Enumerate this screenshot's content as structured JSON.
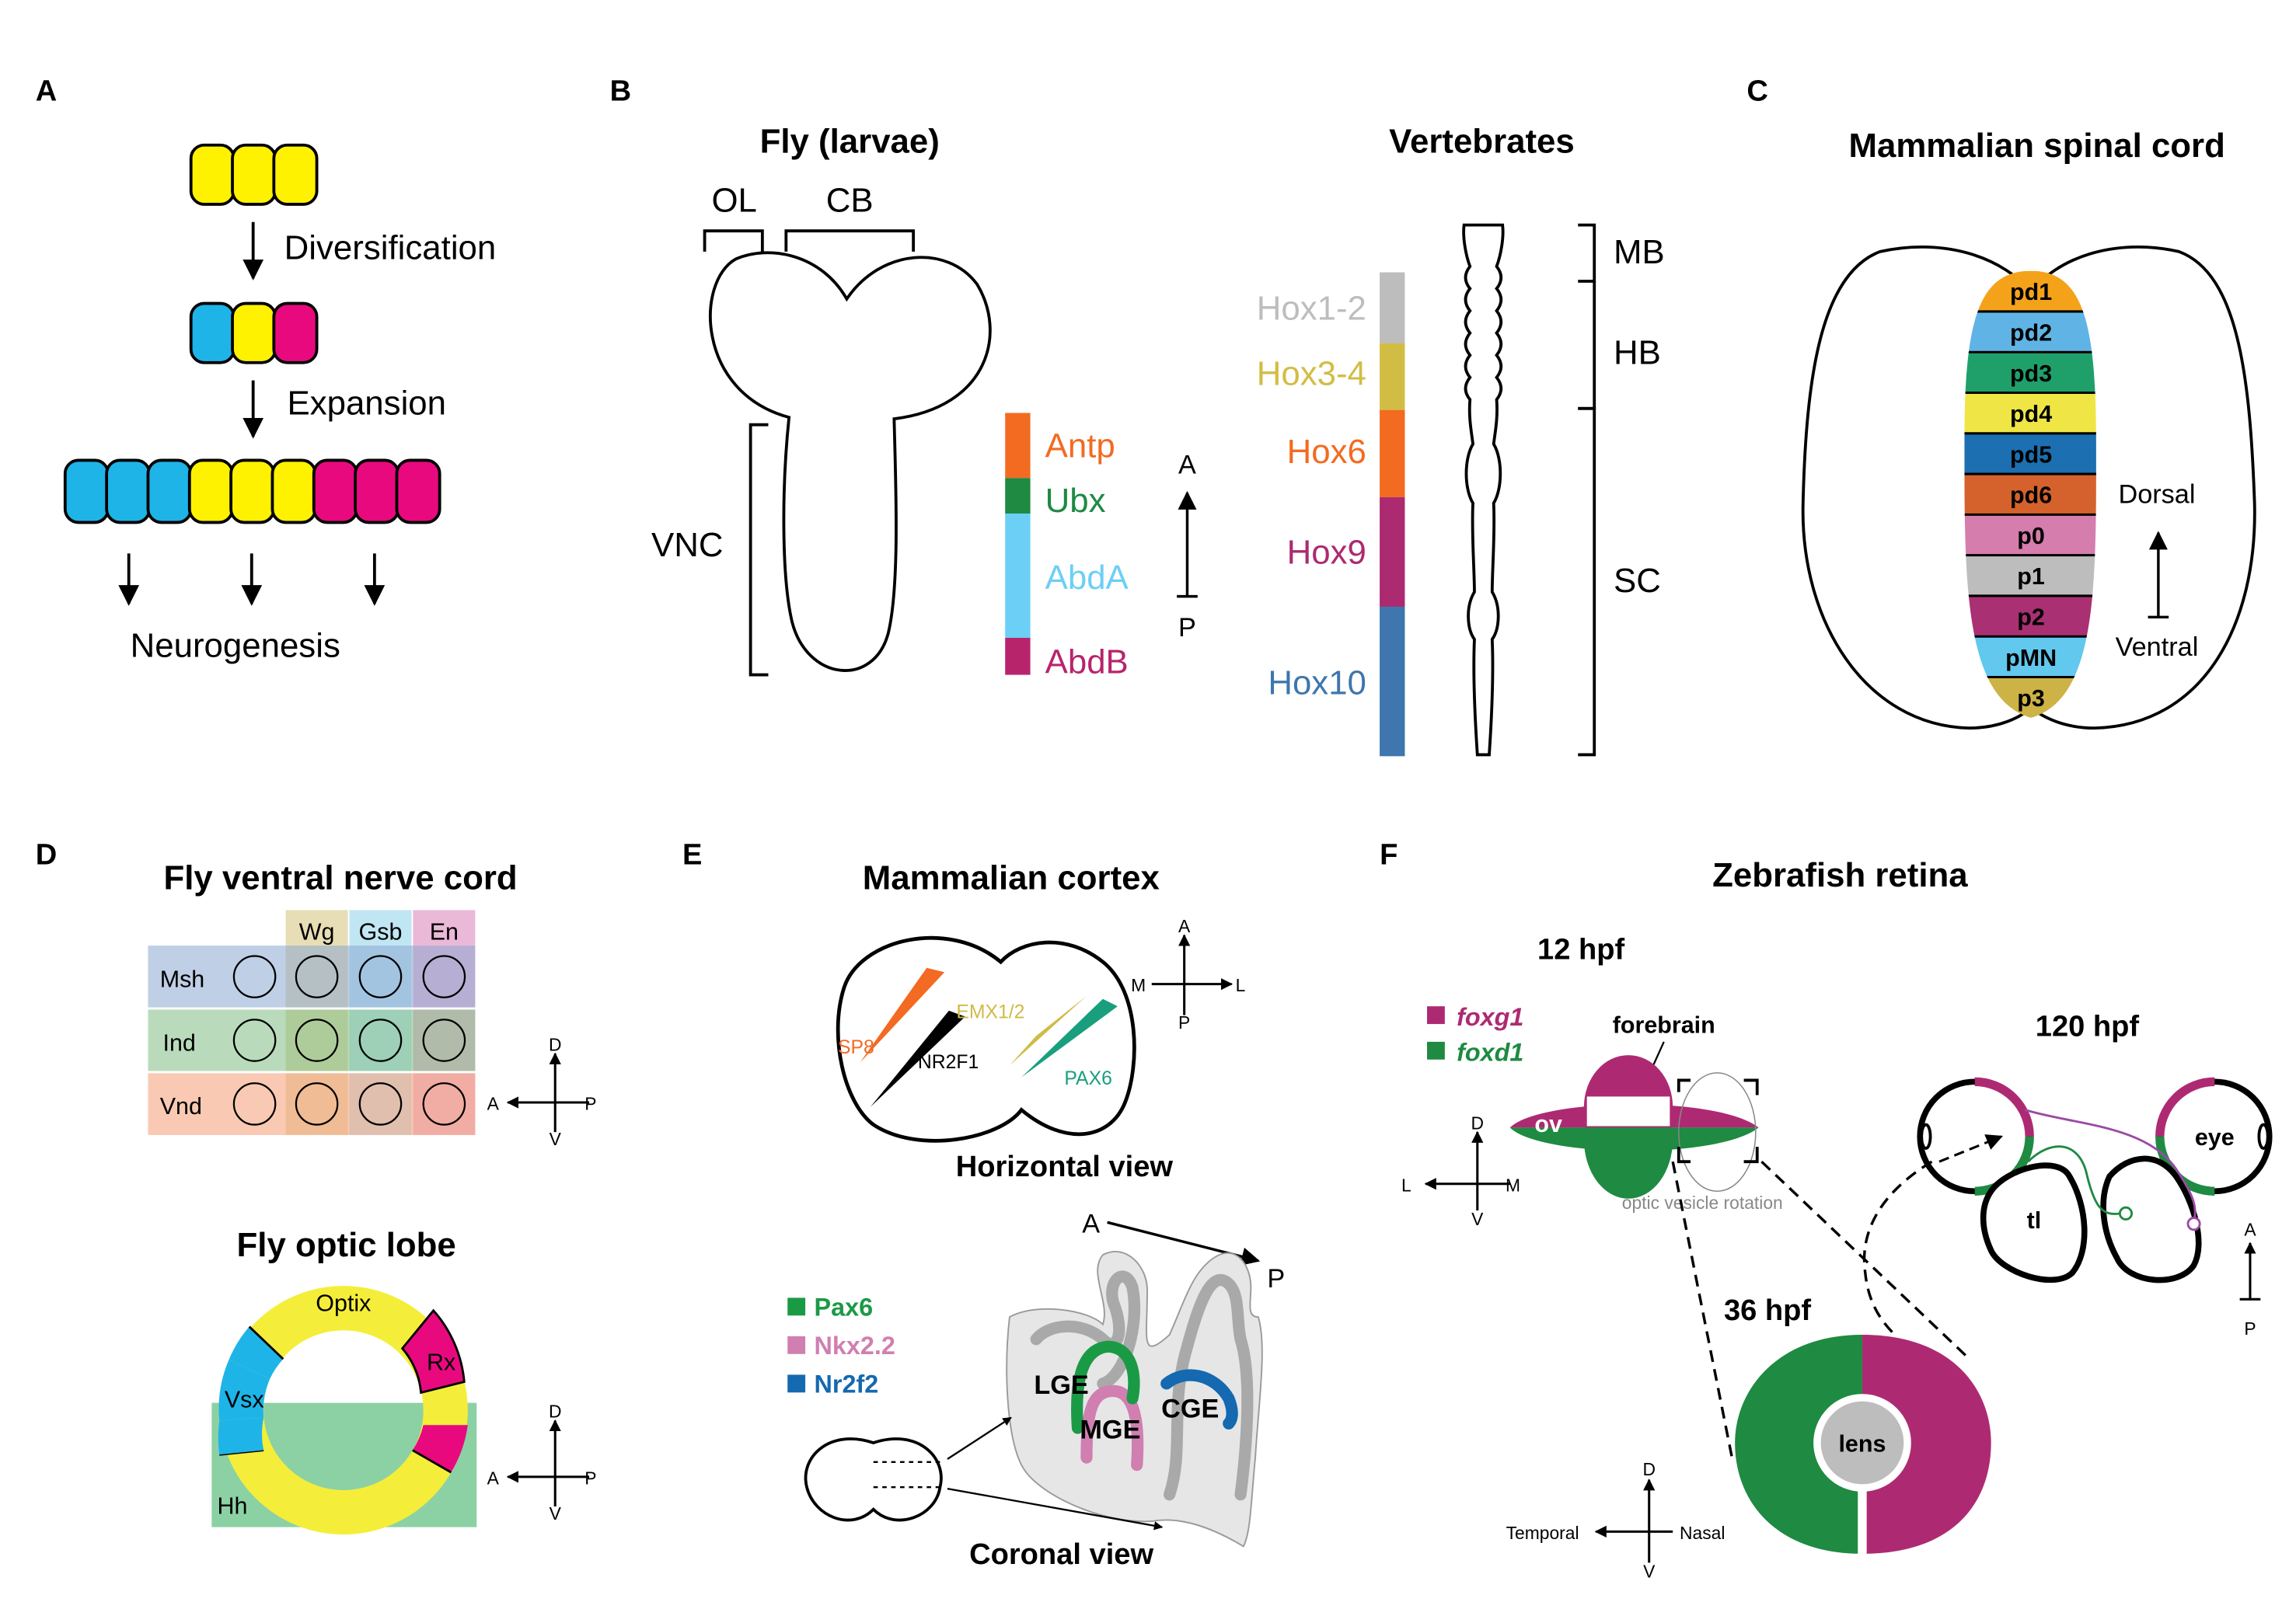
{
  "colors": {
    "yellow": "#FFF200",
    "cyan": "#1EB4E8",
    "magenta": "#E8097F",
    "antp": "#F26B21",
    "ubx": "#1E8A42",
    "abda": "#6CCFF6",
    "abdb": "#B8246C",
    "hox12": "#BDBDBD",
    "hox34": "#D2BD44",
    "hox6": "#F26B21",
    "hox9": "#AB2A70",
    "hox10": "#3E76AD",
    "foxg1": "#AD2A72",
    "foxd1": "#1E8A42",
    "pax6": "#1B9A46",
    "nkx22": "#D07FB0",
    "nr2f2": "#1469B0",
    "emx": "#CFBB46",
    "sp8": "#F36A22",
    "pax6_cortex": "#199F7E"
  },
  "panelA": {
    "letter": "A",
    "step1": "Diversification",
    "step2": "Expansion",
    "result": "Neurogenesis"
  },
  "panelB": {
    "letter": "B",
    "fly_title": "Fly (larvae)",
    "ol": "OL",
    "cb": "CB",
    "vnc": "VNC",
    "fly_genes": [
      "Antp",
      "Ubx",
      "AbdA",
      "AbdB"
    ],
    "axis_a": "A",
    "axis_p": "P",
    "vert_title": "Vertebrates",
    "vert_genes": [
      "Hox1-2",
      "Hox3-4",
      "Hox6",
      "Hox9",
      "Hox10"
    ],
    "regions": [
      "MB",
      "HB",
      "SC"
    ]
  },
  "panelC": {
    "letter": "C",
    "title": "Mammalian spinal cord",
    "domains": [
      {
        "label": "pd1",
        "color": "#F5A21B"
      },
      {
        "label": "pd2",
        "color": "#5FB4E5"
      },
      {
        "label": "pd3",
        "color": "#1FA06B"
      },
      {
        "label": "pd4",
        "color": "#EFE646"
      },
      {
        "label": "pd5",
        "color": "#1C6FB0"
      },
      {
        "label": "pd6",
        "color": "#D5622C"
      },
      {
        "label": "p0",
        "color": "#D57DAC"
      },
      {
        "label": "p1",
        "color": "#BDBDBD"
      },
      {
        "label": "p2",
        "color": "#A93072"
      },
      {
        "label": "pMN",
        "color": "#62C8EE"
      },
      {
        "label": "p3",
        "color": "#CDB246"
      }
    ],
    "dorsal": "Dorsal",
    "ventral": "Ventral"
  },
  "panelD": {
    "letter": "D",
    "title1": "Fly ventral nerve cord",
    "cols": [
      "Wg",
      "Gsb",
      "En"
    ],
    "rows": [
      "Msh",
      "Ind",
      "Vnd"
    ],
    "axis": {
      "d": "D",
      "v": "V",
      "a": "A",
      "p": "P"
    },
    "title2": "Fly optic lobe",
    "optix": "Optix",
    "rx": "Rx",
    "vsx": "Vsx",
    "hh": "Hh"
  },
  "panelE": {
    "letter": "E",
    "title": "Mammalian cortex",
    "sp8": "SP8",
    "emx": "EMX1/2",
    "nr2f1": "NR2F1",
    "pax6": "PAX6",
    "axis": {
      "a": "A",
      "p": "P",
      "m": "M",
      "l": "L"
    },
    "horizontal": "Horizontal view",
    "coronal_a": "A",
    "coronal_p": "P",
    "legend": [
      "Pax6",
      "Nkx2.2",
      "Nr2f2"
    ],
    "lge": "LGE",
    "mge": "MGE",
    "cge": "CGE",
    "coronal": "Coronal view"
  },
  "panelF": {
    "letter": "F",
    "title": "Zebrafish retina",
    "hpf12": "12 hpf",
    "legend": [
      "foxg1",
      "foxd1"
    ],
    "forebrain": "forebrain",
    "ov": "ov",
    "rotation": "optic vesicle rotation",
    "axis1": {
      "d": "D",
      "v": "V",
      "l": "L",
      "m": "M"
    },
    "hpf120": "120 hpf",
    "eye": "eye",
    "tl": "tl",
    "axis2": {
      "a": "A",
      "p": "P"
    },
    "hpf36": "36 hpf",
    "lens": "lens",
    "axis3": {
      "d": "D",
      "v": "V",
      "temporal": "Temporal",
      "nasal": "Nasal"
    }
  }
}
